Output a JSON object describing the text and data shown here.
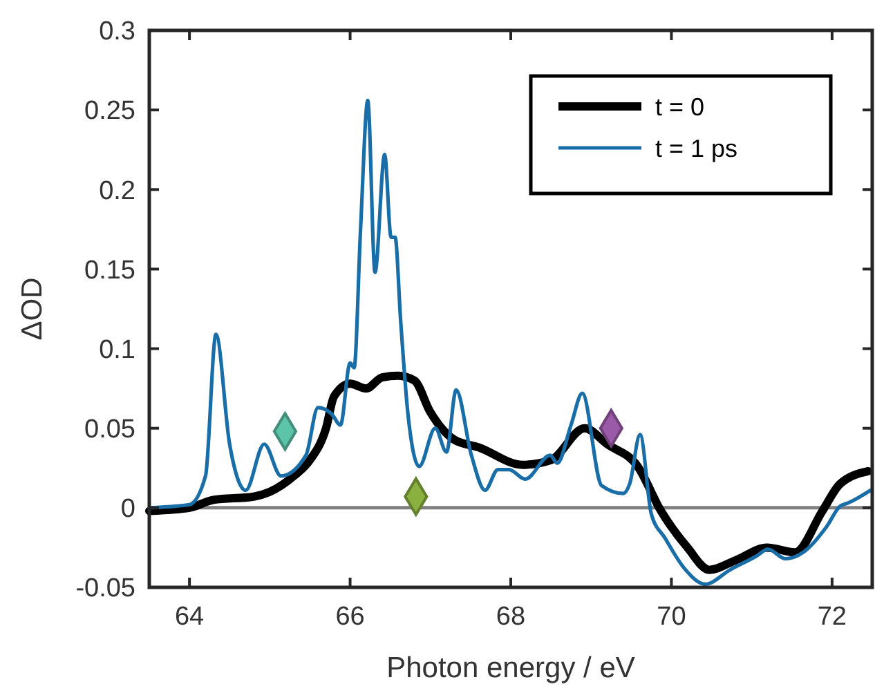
{
  "chart_data": {
    "type": "line",
    "xlabel": "Photon energy / eV",
    "ylabel": "ΔOD",
    "xlim": [
      63.5,
      72.5
    ],
    "xticks": [
      64,
      66,
      68,
      70,
      72
    ],
    "ylim": [
      -0.05,
      0.3
    ],
    "yticks": [
      -0.05,
      0,
      0.05,
      0.1,
      0.15,
      0.2,
      0.25,
      0.3
    ],
    "grid": false,
    "legend": "top right",
    "marker": "none",
    "line_style": "solid",
    "ref_lines": [
      {
        "axis": "y",
        "value": 0,
        "color": "#808080"
      }
    ],
    "series": [
      {
        "name": "t = 0",
        "color": "#000000",
        "x": [
          63.5,
          64.0,
          64.3,
          64.8,
          65.0,
          65.3,
          65.5,
          65.7,
          65.8,
          66.0,
          66.2,
          66.4,
          66.6,
          66.8,
          67.0,
          67.29,
          67.6,
          68.15,
          68.5,
          68.92,
          69.2,
          69.58,
          69.87,
          70.2,
          70.47,
          70.8,
          71.19,
          71.54,
          71.88,
          72.1,
          72.45
        ],
        "values": [
          -0.002,
          0.0,
          0.005,
          0.007,
          0.01,
          0.02,
          0.03,
          0.05,
          0.07,
          0.078,
          0.075,
          0.082,
          0.083,
          0.08,
          0.06,
          0.043,
          0.038,
          0.027,
          0.03,
          0.05,
          0.04,
          0.026,
          -0.002,
          -0.025,
          -0.039,
          -0.033,
          -0.025,
          -0.028,
          -0.002,
          0.015,
          0.023
        ]
      },
      {
        "name": "t = 1 ps",
        "color": "#1a6ea8",
        "x": [
          63.5,
          64.0,
          64.2,
          64.33,
          64.5,
          64.7,
          64.93,
          65.14,
          65.45,
          65.6,
          65.77,
          65.88,
          66.0,
          66.05,
          66.13,
          66.22,
          66.31,
          66.43,
          66.51,
          66.56,
          66.63,
          66.72,
          66.86,
          67.06,
          67.2,
          67.32,
          67.51,
          67.68,
          67.84,
          67.98,
          68.18,
          68.49,
          68.58,
          68.75,
          68.89,
          69.13,
          69.4,
          69.48,
          69.61,
          69.75,
          69.92,
          70.16,
          70.42,
          70.73,
          71.07,
          71.2,
          71.42,
          71.64,
          71.93,
          72.1,
          72.2,
          72.48
        ],
        "values": [
          0.0,
          0.002,
          0.02,
          0.109,
          0.04,
          0.011,
          0.04,
          0.02,
          0.033,
          0.063,
          0.059,
          0.052,
          0.091,
          0.088,
          0.175,
          0.256,
          0.148,
          0.222,
          0.17,
          0.17,
          0.117,
          0.059,
          0.026,
          0.05,
          0.035,
          0.074,
          0.033,
          0.011,
          0.024,
          0.024,
          0.018,
          0.033,
          0.028,
          0.052,
          0.072,
          0.014,
          0.009,
          0.015,
          0.046,
          -0.004,
          -0.019,
          -0.038,
          -0.048,
          -0.039,
          -0.03,
          -0.026,
          -0.032,
          -0.028,
          -0.012,
          0.001,
          0.003,
          0.011
        ]
      },
      {
        "type": "scatter",
        "marker": "diamond",
        "color": "#5cc4a8",
        "x": [
          65.19
        ],
        "values": [
          0.048
        ]
      },
      {
        "type": "scatter",
        "marker": "diamond",
        "color": "#8ab040",
        "x": [
          66.82
        ],
        "values": [
          0.007
        ]
      },
      {
        "type": "scatter",
        "marker": "diamond",
        "color": "#9a5aa8",
        "x": [
          69.25
        ],
        "values": [
          0.05
        ]
      }
    ]
  }
}
